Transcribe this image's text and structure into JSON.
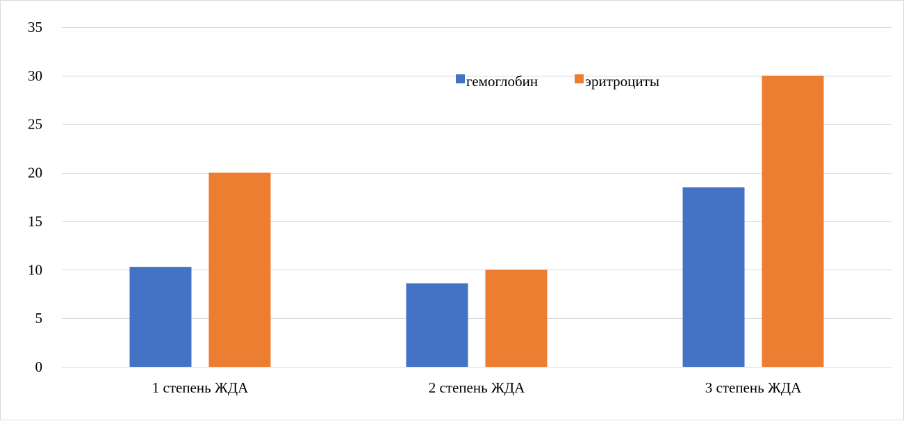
{
  "chart_data": {
    "type": "bar",
    "categories": [
      "1 степень ЖДА",
      "2 степень ЖДА",
      "3 степень ЖДА"
    ],
    "series": [
      {
        "name": "гемоглобин",
        "values": [
          10.3,
          8.6,
          18.5
        ],
        "color": "#4472C4"
      },
      {
        "name": "эритроциты",
        "values": [
          20,
          10,
          30
        ],
        "color": "#ED7D31"
      }
    ],
    "ylim": [
      0,
      35
    ],
    "yticks": [
      0,
      5,
      10,
      15,
      20,
      25,
      30,
      35
    ],
    "grid": true,
    "gridline_color": "#d9d9d9",
    "legend_position": "top-center-inside"
  }
}
